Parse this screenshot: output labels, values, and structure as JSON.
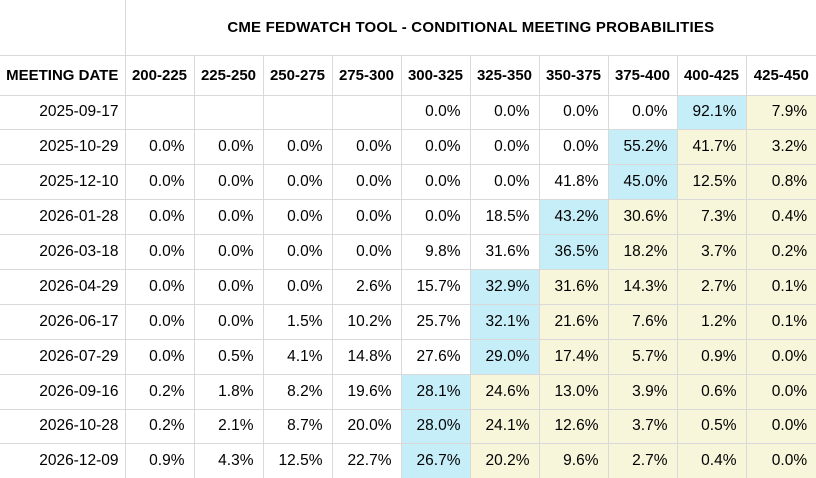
{
  "title": "CME FEDWATCH TOOL - CONDITIONAL MEETING PROBABILITIES",
  "colors": {
    "highlight_blue": "#c5eef9",
    "highlight_yellow": "#f8f6da",
    "border": "#d9d9d9",
    "text": "#000000",
    "background": "#ffffff"
  },
  "table": {
    "date_header": "MEETING DATE",
    "rate_headers": [
      "200-225",
      "225-250",
      "250-275",
      "275-300",
      "300-325",
      "325-350",
      "350-375",
      "375-400",
      "400-425",
      "425-450"
    ],
    "rows": [
      {
        "date": "2025-09-17",
        "values": [
          "",
          "",
          "",
          "",
          "0.0%",
          "0.0%",
          "0.0%",
          "0.0%",
          "92.1%",
          "7.9%"
        ],
        "max_index": 8
      },
      {
        "date": "2025-10-29",
        "values": [
          "0.0%",
          "0.0%",
          "0.0%",
          "0.0%",
          "0.0%",
          "0.0%",
          "0.0%",
          "55.2%",
          "41.7%",
          "3.2%"
        ],
        "max_index": 7
      },
      {
        "date": "2025-12-10",
        "values": [
          "0.0%",
          "0.0%",
          "0.0%",
          "0.0%",
          "0.0%",
          "0.0%",
          "41.8%",
          "45.0%",
          "12.5%",
          "0.8%"
        ],
        "max_index": 7
      },
      {
        "date": "2026-01-28",
        "values": [
          "0.0%",
          "0.0%",
          "0.0%",
          "0.0%",
          "0.0%",
          "18.5%",
          "43.2%",
          "30.6%",
          "7.3%",
          "0.4%"
        ],
        "max_index": 6
      },
      {
        "date": "2026-03-18",
        "values": [
          "0.0%",
          "0.0%",
          "0.0%",
          "0.0%",
          "9.8%",
          "31.6%",
          "36.5%",
          "18.2%",
          "3.7%",
          "0.2%"
        ],
        "max_index": 6
      },
      {
        "date": "2026-04-29",
        "values": [
          "0.0%",
          "0.0%",
          "0.0%",
          "2.6%",
          "15.7%",
          "32.9%",
          "31.6%",
          "14.3%",
          "2.7%",
          "0.1%"
        ],
        "max_index": 5
      },
      {
        "date": "2026-06-17",
        "values": [
          "0.0%",
          "0.0%",
          "1.5%",
          "10.2%",
          "25.7%",
          "32.1%",
          "21.6%",
          "7.6%",
          "1.2%",
          "0.1%"
        ],
        "max_index": 5
      },
      {
        "date": "2026-07-29",
        "values": [
          "0.0%",
          "0.5%",
          "4.1%",
          "14.8%",
          "27.6%",
          "29.0%",
          "17.4%",
          "5.7%",
          "0.9%",
          "0.0%"
        ],
        "max_index": 5
      },
      {
        "date": "2026-09-16",
        "values": [
          "0.2%",
          "1.8%",
          "8.2%",
          "19.6%",
          "28.1%",
          "24.6%",
          "13.0%",
          "3.9%",
          "0.6%",
          "0.0%"
        ],
        "max_index": 4
      },
      {
        "date": "2026-10-28",
        "values": [
          "0.2%",
          "2.1%",
          "8.7%",
          "20.0%",
          "28.0%",
          "24.1%",
          "12.6%",
          "3.7%",
          "0.5%",
          "0.0%"
        ],
        "max_index": 4
      },
      {
        "date": "2026-12-09",
        "values": [
          "0.9%",
          "4.3%",
          "12.5%",
          "22.7%",
          "26.7%",
          "20.2%",
          "9.6%",
          "2.7%",
          "0.4%",
          "0.0%"
        ],
        "max_index": 4
      }
    ]
  }
}
